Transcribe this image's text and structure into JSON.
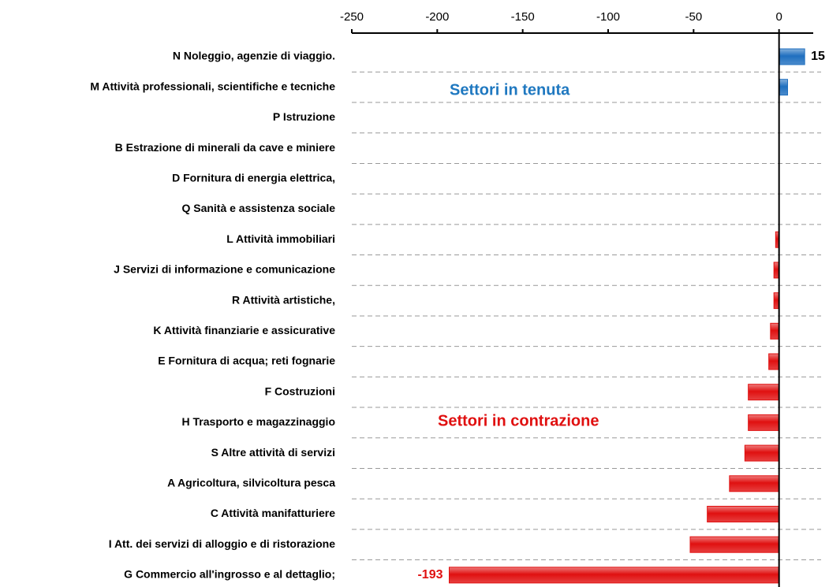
{
  "chart_data": {
    "type": "hbar",
    "categories": [
      "N Noleggio, agenzie di viaggio.",
      "M Attività professionali, scientifiche e tecniche",
      "P Istruzione",
      "B Estrazione di minerali da cave e miniere",
      "D Fornitura di energia elettrica,",
      "Q Sanità e assistenza sociale",
      "L Attività immobiliari",
      "J Servizi di informazione e comunicazione",
      "R Attività artistiche,",
      "K Attività finanziarie e assicurative",
      "E Fornitura di acqua; reti fognarie",
      "F Costruzioni",
      "H Trasporto e magazzinaggio",
      "S Altre attività di servizi",
      "A Agricoltura, silvicoltura pesca",
      "C Attività manifatturiere",
      "I Att. dei servizi di alloggio e di ristorazione",
      "G Commercio all'ingrosso e al dettaglio;"
    ],
    "values": [
      15,
      5,
      0,
      0,
      0,
      0,
      -2,
      -3,
      -3,
      -5,
      -6,
      -18,
      -18,
      -20,
      -29,
      -42,
      -52,
      -193
    ],
    "value_labels": [
      "15",
      null,
      null,
      null,
      null,
      null,
      null,
      null,
      null,
      null,
      null,
      null,
      null,
      null,
      null,
      null,
      null,
      "-193"
    ],
    "positive_color": "#1f6fbf",
    "negative_color": "#e01010",
    "xlim": [
      -250,
      20
    ],
    "xticks": [
      -250,
      -200,
      -150,
      -100,
      -50,
      0
    ],
    "grid": true,
    "annotations": [
      {
        "text": "Settori in tenuta",
        "color": "#1f78c0"
      },
      {
        "text": "Settori in contrazione",
        "color": "#e01010"
      }
    ]
  }
}
